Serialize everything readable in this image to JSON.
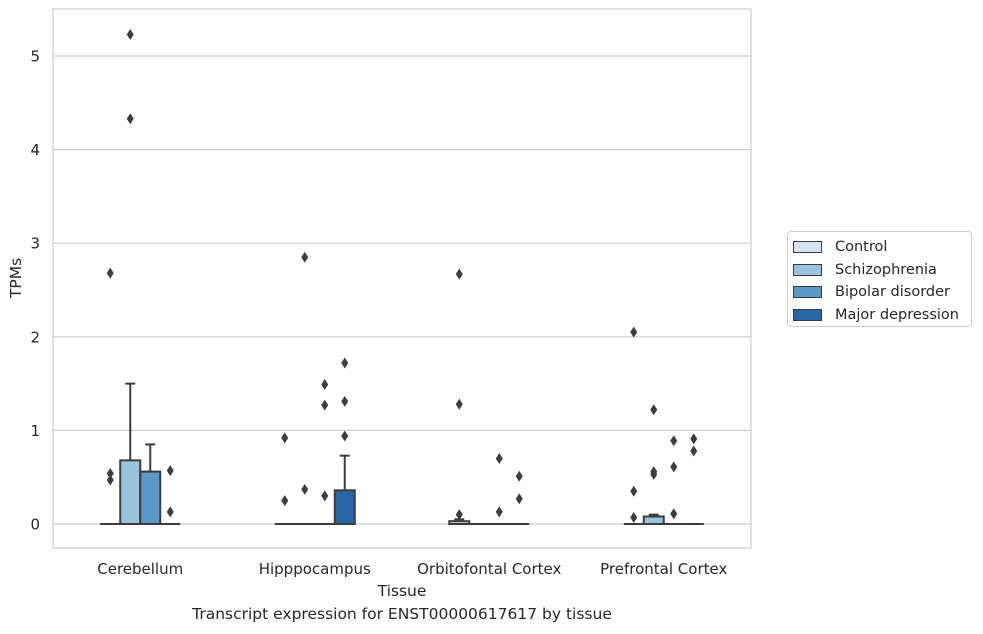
{
  "chart_data": {
    "type": "box",
    "xlabel": "Tissue",
    "ylabel": "TPMs",
    "caption": "Transcript expression for ENST00000617617 by tissue",
    "ylim": [
      -0.25,
      5.5
    ],
    "yticks": [
      0,
      1,
      2,
      3,
      4,
      5
    ],
    "grid": true,
    "legend_position": "right",
    "categories": [
      "Cerebellum",
      "Hipppocampus",
      "Orbitofontal Cortex",
      "Prefrontal Cortex"
    ],
    "series": [
      {
        "name": "Control",
        "color": "#d6e4f0",
        "boxes": [
          {
            "q1": 0,
            "median": 0,
            "q3": 0,
            "whisker_low": 0,
            "whisker_high": 0,
            "outliers": [
              0.47,
              0.54,
              2.68
            ]
          },
          {
            "q1": 0,
            "median": 0,
            "q3": 0,
            "whisker_low": 0,
            "whisker_high": 0,
            "outliers": [
              0.25,
              0.92
            ]
          },
          {
            "q1": 0,
            "median": 0,
            "q3": 0.03,
            "whisker_low": 0,
            "whisker_high": 0.05,
            "outliers": [
              0.1,
              1.28,
              2.67
            ]
          },
          {
            "q1": 0,
            "median": 0,
            "q3": 0,
            "whisker_low": 0,
            "whisker_high": 0,
            "outliers": [
              0.07,
              0.35,
              2.05
            ]
          }
        ]
      },
      {
        "name": "Schizophrenia",
        "color": "#9bc4dc",
        "boxes": [
          {
            "q1": 0,
            "median": 0,
            "q3": 0.68,
            "whisker_low": 0,
            "whisker_high": 1.5,
            "outliers": [
              4.33,
              5.23
            ]
          },
          {
            "q1": 0,
            "median": 0,
            "q3": 0,
            "whisker_low": 0,
            "whisker_high": 0,
            "outliers": [
              0.37,
              2.85
            ]
          },
          {
            "q1": 0,
            "median": 0,
            "q3": 0,
            "whisker_low": 0,
            "whisker_high": 0,
            "outliers": []
          },
          {
            "q1": 0,
            "median": 0,
            "q3": 0.08,
            "whisker_low": 0,
            "whisker_high": 0.1,
            "outliers": [
              0.53,
              0.56,
              1.22
            ]
          }
        ]
      },
      {
        "name": "Bipolar disorder",
        "color": "#5a98c6",
        "boxes": [
          {
            "q1": 0,
            "median": 0,
            "q3": 0.56,
            "whisker_low": 0,
            "whisker_high": 0.85,
            "outliers": []
          },
          {
            "q1": 0,
            "median": 0,
            "q3": 0,
            "whisker_low": 0,
            "whisker_high": 0,
            "outliers": [
              0.3,
              1.27,
              1.49
            ]
          },
          {
            "q1": 0,
            "median": 0,
            "q3": 0,
            "whisker_low": 0,
            "whisker_high": 0,
            "outliers": [
              0.13,
              0.7
            ]
          },
          {
            "q1": 0,
            "median": 0,
            "q3": 0,
            "whisker_low": 0,
            "whisker_high": 0,
            "outliers": [
              0.11,
              0.61,
              0.89
            ]
          }
        ]
      },
      {
        "name": "Major depression",
        "color": "#2866a6",
        "boxes": [
          {
            "q1": 0,
            "median": 0,
            "q3": 0,
            "whisker_low": 0,
            "whisker_high": 0,
            "outliers": [
              0.13,
              0.57
            ]
          },
          {
            "q1": 0,
            "median": 0,
            "q3": 0.36,
            "whisker_low": 0,
            "whisker_high": 0.73,
            "outliers": [
              0.94,
              1.31,
              1.72
            ]
          },
          {
            "q1": 0,
            "median": 0,
            "q3": 0,
            "whisker_low": 0,
            "whisker_high": 0,
            "outliers": [
              0.27,
              0.51
            ]
          },
          {
            "q1": 0,
            "median": 0,
            "q3": 0,
            "whisker_low": 0,
            "whisker_high": 0,
            "outliers": [
              0.78,
              0.91
            ]
          }
        ]
      }
    ]
  }
}
